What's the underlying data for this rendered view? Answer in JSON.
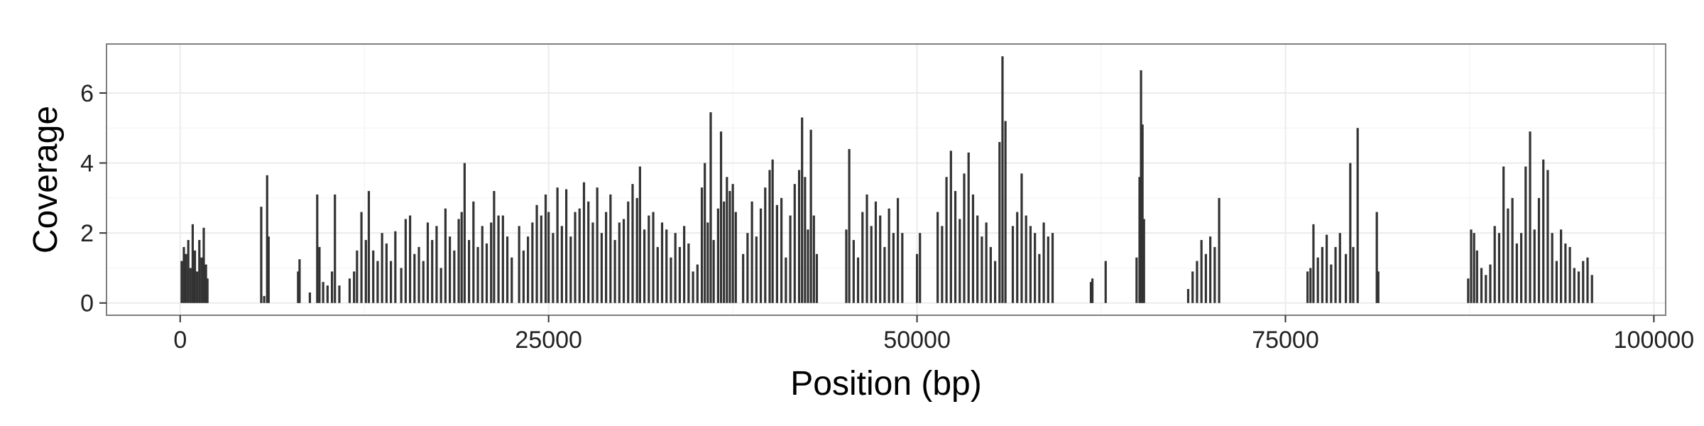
{
  "chart_data": {
    "type": "bar",
    "title": "",
    "xlabel": "Position (bp)",
    "ylabel": "Coverage",
    "xlim": [
      -5000,
      100800
    ],
    "ylim": [
      -0.35,
      7.4
    ],
    "x_ticks": [
      0,
      25000,
      50000,
      75000,
      100000
    ],
    "x_tick_labels": [
      "0",
      "25000",
      "50000",
      "75000",
      "100000"
    ],
    "y_ticks": [
      0,
      2,
      4,
      6
    ],
    "y_tick_labels": [
      "0",
      "2",
      "4",
      "6"
    ],
    "grid": true,
    "bar_color": "#333333",
    "panel_background": "#ffffff",
    "grid_color": "#ebebeb",
    "panel_border_color": "#7f7f7f",
    "series": [
      {
        "values": [
          [
            100,
            1.2
          ],
          [
            250,
            1.6
          ],
          [
            400,
            1.4
          ],
          [
            550,
            1.8
          ],
          [
            700,
            1.0
          ],
          [
            850,
            2.25
          ],
          [
            1000,
            1.5
          ],
          [
            1150,
            0.9
          ],
          [
            1300,
            1.8
          ],
          [
            1450,
            1.3
          ],
          [
            1600,
            2.15
          ],
          [
            1750,
            1.1
          ],
          [
            1850,
            0.7
          ],
          [
            5500,
            2.75
          ],
          [
            5700,
            0.2
          ],
          [
            5900,
            3.65
          ],
          [
            6000,
            1.9
          ],
          [
            8000,
            0.9
          ],
          [
            8100,
            1.25
          ],
          [
            8800,
            0.3
          ],
          [
            9300,
            3.1
          ],
          [
            9450,
            1.6
          ],
          [
            9700,
            0.6
          ],
          [
            10000,
            0.5
          ],
          [
            10300,
            0.9
          ],
          [
            10500,
            3.1
          ],
          [
            10800,
            0.5
          ],
          [
            11500,
            0.7
          ],
          [
            11800,
            0.9
          ],
          [
            12000,
            1.5
          ],
          [
            12300,
            2.6
          ],
          [
            12600,
            1.8
          ],
          [
            12800,
            3.2
          ],
          [
            13100,
            1.5
          ],
          [
            13400,
            1.2
          ],
          [
            13700,
            2.0
          ],
          [
            14000,
            1.7
          ],
          [
            14300,
            1.2
          ],
          [
            14600,
            2.05
          ],
          [
            15000,
            1.0
          ],
          [
            15300,
            2.4
          ],
          [
            15600,
            2.5
          ],
          [
            15900,
            1.4
          ],
          [
            16200,
            1.6
          ],
          [
            16500,
            1.2
          ],
          [
            16800,
            2.3
          ],
          [
            17100,
            1.8
          ],
          [
            17400,
            2.2
          ],
          [
            17700,
            1.0
          ],
          [
            18000,
            2.7
          ],
          [
            18300,
            1.9
          ],
          [
            18600,
            1.5
          ],
          [
            18900,
            2.4
          ],
          [
            19100,
            2.6
          ],
          [
            19300,
            4.0
          ],
          [
            19600,
            1.8
          ],
          [
            19900,
            2.9
          ],
          [
            20200,
            1.6
          ],
          [
            20500,
            2.2
          ],
          [
            20800,
            1.7
          ],
          [
            21100,
            2.3
          ],
          [
            21300,
            3.2
          ],
          [
            21600,
            2.5
          ],
          [
            21900,
            2.5
          ],
          [
            22200,
            1.9
          ],
          [
            22500,
            1.3
          ],
          [
            23000,
            2.2
          ],
          [
            23300,
            1.5
          ],
          [
            23600,
            1.9
          ],
          [
            23900,
            2.3
          ],
          [
            24200,
            2.8
          ],
          [
            24500,
            2.5
          ],
          [
            24800,
            3.1
          ],
          [
            25000,
            2.6
          ],
          [
            25300,
            2.0
          ],
          [
            25600,
            3.3
          ],
          [
            25900,
            2.2
          ],
          [
            26200,
            3.25
          ],
          [
            26500,
            1.9
          ],
          [
            26800,
            2.6
          ],
          [
            27100,
            2.7
          ],
          [
            27400,
            3.45
          ],
          [
            27700,
            2.9
          ],
          [
            28000,
            2.3
          ],
          [
            28300,
            3.3
          ],
          [
            28600,
            2.0
          ],
          [
            28900,
            2.6
          ],
          [
            29200,
            3.1
          ],
          [
            29500,
            1.8
          ],
          [
            29800,
            2.3
          ],
          [
            30100,
            2.4
          ],
          [
            30400,
            2.9
          ],
          [
            30700,
            3.4
          ],
          [
            31000,
            3.0
          ],
          [
            31200,
            3.9
          ],
          [
            31500,
            2.1
          ],
          [
            31800,
            2.5
          ],
          [
            32100,
            2.6
          ],
          [
            32400,
            1.6
          ],
          [
            32700,
            2.3
          ],
          [
            33000,
            2.1
          ],
          [
            33300,
            1.3
          ],
          [
            33600,
            2.0
          ],
          [
            33900,
            1.6
          ],
          [
            34200,
            2.2
          ],
          [
            34500,
            1.7
          ],
          [
            34800,
            0.9
          ],
          [
            35100,
            1.1
          ],
          [
            35400,
            3.3
          ],
          [
            35600,
            4.0
          ],
          [
            35800,
            2.3
          ],
          [
            36000,
            5.45
          ],
          [
            36200,
            1.8
          ],
          [
            36500,
            2.7
          ],
          [
            36700,
            4.9
          ],
          [
            36900,
            2.9
          ],
          [
            37100,
            3.6
          ],
          [
            37300,
            3.2
          ],
          [
            37500,
            3.4
          ],
          [
            37700,
            2.6
          ],
          [
            38200,
            1.4
          ],
          [
            38500,
            2.0
          ],
          [
            38800,
            2.9
          ],
          [
            39100,
            1.9
          ],
          [
            39400,
            2.7
          ],
          [
            39700,
            3.3
          ],
          [
            40000,
            3.8
          ],
          [
            40200,
            4.1
          ],
          [
            40500,
            2.8
          ],
          [
            40800,
            3.0
          ],
          [
            41100,
            1.3
          ],
          [
            41400,
            2.5
          ],
          [
            41700,
            3.4
          ],
          [
            42000,
            3.8
          ],
          [
            42200,
            5.3
          ],
          [
            42400,
            3.6
          ],
          [
            42600,
            2.1
          ],
          [
            42800,
            4.95
          ],
          [
            43000,
            2.5
          ],
          [
            43200,
            1.4
          ],
          [
            45200,
            2.1
          ],
          [
            45400,
            4.4
          ],
          [
            45700,
            1.8
          ],
          [
            46000,
            1.3
          ],
          [
            46300,
            2.6
          ],
          [
            46600,
            3.1
          ],
          [
            46900,
            2.2
          ],
          [
            47200,
            2.9
          ],
          [
            47500,
            2.5
          ],
          [
            47800,
            1.6
          ],
          [
            48100,
            2.7
          ],
          [
            48400,
            2.0
          ],
          [
            48700,
            3.0
          ],
          [
            49000,
            2.0
          ],
          [
            50000,
            1.4
          ],
          [
            50200,
            2.0
          ],
          [
            51400,
            2.6
          ],
          [
            51700,
            2.2
          ],
          [
            52000,
            3.6
          ],
          [
            52300,
            4.35
          ],
          [
            52600,
            3.2
          ],
          [
            52900,
            2.4
          ],
          [
            53200,
            3.7
          ],
          [
            53500,
            4.3
          ],
          [
            53800,
            3.1
          ],
          [
            54100,
            2.5
          ],
          [
            54400,
            1.9
          ],
          [
            54700,
            2.3
          ],
          [
            55000,
            1.6
          ],
          [
            55300,
            1.2
          ],
          [
            55600,
            4.6
          ],
          [
            55800,
            7.05
          ],
          [
            56000,
            5.2
          ],
          [
            56500,
            2.2
          ],
          [
            56800,
            2.6
          ],
          [
            57100,
            3.7
          ],
          [
            57400,
            2.5
          ],
          [
            57700,
            2.2
          ],
          [
            58000,
            2.0
          ],
          [
            58300,
            1.4
          ],
          [
            58600,
            2.3
          ],
          [
            58900,
            1.9
          ],
          [
            59200,
            2.0
          ],
          [
            61800,
            0.6
          ],
          [
            61900,
            0.7
          ],
          [
            62800,
            1.2
          ],
          [
            64900,
            1.3
          ],
          [
            65100,
            3.6
          ],
          [
            65200,
            6.65
          ],
          [
            65300,
            5.1
          ],
          [
            65400,
            2.4
          ],
          [
            68400,
            0.4
          ],
          [
            68700,
            0.9
          ],
          [
            69000,
            1.2
          ],
          [
            69300,
            1.8
          ],
          [
            69600,
            1.4
          ],
          [
            69900,
            1.9
          ],
          [
            70200,
            1.6
          ],
          [
            70500,
            3.0
          ],
          [
            76500,
            0.9
          ],
          [
            76700,
            1.0
          ],
          [
            76900,
            2.25
          ],
          [
            77200,
            1.3
          ],
          [
            77500,
            1.6
          ],
          [
            77800,
            1.95
          ],
          [
            78100,
            1.1
          ],
          [
            78400,
            1.6
          ],
          [
            78700,
            2.0
          ],
          [
            79100,
            1.4
          ],
          [
            79400,
            4.0
          ],
          [
            79600,
            1.6
          ],
          [
            79900,
            5.0
          ],
          [
            81200,
            2.6
          ],
          [
            81300,
            0.9
          ],
          [
            87400,
            0.7
          ],
          [
            87600,
            2.1
          ],
          [
            87800,
            2.0
          ],
          [
            88000,
            1.5
          ],
          [
            88300,
            1.0
          ],
          [
            88600,
            0.8
          ],
          [
            88900,
            1.1
          ],
          [
            89200,
            2.2
          ],
          [
            89500,
            2.0
          ],
          [
            89800,
            3.9
          ],
          [
            90100,
            2.7
          ],
          [
            90400,
            3.0
          ],
          [
            90700,
            1.7
          ],
          [
            91000,
            2.0
          ],
          [
            91300,
            3.9
          ],
          [
            91600,
            4.9
          ],
          [
            91900,
            2.1
          ],
          [
            92200,
            3.0
          ],
          [
            92500,
            4.1
          ],
          [
            92800,
            3.8
          ],
          [
            93100,
            2.0
          ],
          [
            93400,
            1.2
          ],
          [
            93700,
            2.1
          ],
          [
            94000,
            1.7
          ],
          [
            94300,
            1.6
          ],
          [
            94600,
            1.0
          ],
          [
            94900,
            0.9
          ],
          [
            95200,
            1.2
          ],
          [
            95500,
            1.3
          ],
          [
            95800,
            0.8
          ]
        ]
      }
    ]
  }
}
